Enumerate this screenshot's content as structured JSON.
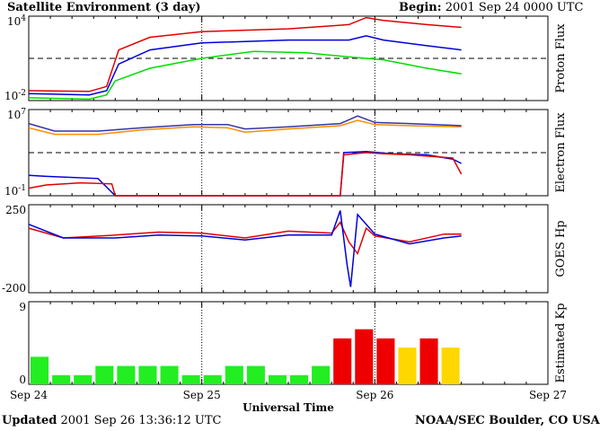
{
  "header": {
    "title": "Satellite Environment (3 day)",
    "begin_label": "Begin:",
    "begin_value": "2001 Sep 24 0000 UTC"
  },
  "footer": {
    "updated_label": "Updated",
    "updated_value": "2001 Sep 26 13:36:12 UTC",
    "credit": "NOAA/SEC Boulder, CO USA"
  },
  "chart_data": [
    {
      "type": "line",
      "ylabel": "Proton Flux",
      "ylim_log10": [
        -2,
        4
      ],
      "yticks": [
        {
          "exp": 4,
          "label": "10^4"
        },
        {
          "exp": -2,
          "label": "10^-2"
        }
      ],
      "threshold_log10": 1,
      "colors": [
        "#e00000",
        "#0000dd",
        "#00dd00"
      ],
      "series": [
        {
          "key": "p1",
          "color": "#e00000",
          "points": [
            [
              0,
              -1.3
            ],
            [
              0.35,
              -1.35
            ],
            [
              0.45,
              -1.0
            ],
            [
              0.52,
              1.6
            ],
            [
              0.7,
              2.5
            ],
            [
              1.0,
              2.9
            ],
            [
              1.5,
              3.1
            ],
            [
              1.85,
              3.4
            ],
            [
              1.95,
              3.9
            ],
            [
              2.05,
              3.7
            ],
            [
              2.3,
              3.4
            ],
            [
              2.5,
              3.2
            ]
          ]
        },
        {
          "key": "p2",
          "color": "#0000dd",
          "points": [
            [
              0,
              -1.5
            ],
            [
              0.35,
              -1.6
            ],
            [
              0.45,
              -1.3
            ],
            [
              0.52,
              0.6
            ],
            [
              0.7,
              1.6
            ],
            [
              1.0,
              2.1
            ],
            [
              1.5,
              2.3
            ],
            [
              1.85,
              2.3
            ],
            [
              1.95,
              2.6
            ],
            [
              2.05,
              2.3
            ],
            [
              2.3,
              1.9
            ],
            [
              2.5,
              1.6
            ]
          ]
        },
        {
          "key": "p3",
          "color": "#00dd00",
          "points": [
            [
              0,
              -1.8
            ],
            [
              0.35,
              -1.9
            ],
            [
              0.45,
              -1.6
            ],
            [
              0.5,
              -0.6
            ],
            [
              0.7,
              0.3
            ],
            [
              1.0,
              1.0
            ],
            [
              1.3,
              1.5
            ],
            [
              1.6,
              1.4
            ],
            [
              1.85,
              1.1
            ],
            [
              2.05,
              0.9
            ],
            [
              2.3,
              0.3
            ],
            [
              2.5,
              -0.1
            ]
          ]
        }
      ]
    },
    {
      "type": "line",
      "ylabel": "Electron Flux",
      "ylim_log10": [
        -1,
        7
      ],
      "yticks": [
        {
          "exp": 7,
          "label": "10^7"
        },
        {
          "exp": -1,
          "label": "10^-1"
        }
      ],
      "threshold_log10": 3,
      "series": [
        {
          "key": "e1",
          "color": "#ff8c00",
          "points": [
            [
              0,
              5.3
            ],
            [
              0.15,
              4.7
            ],
            [
              0.4,
              4.7
            ],
            [
              0.65,
              5.1
            ],
            [
              0.95,
              5.4
            ],
            [
              1.15,
              5.3
            ],
            [
              1.25,
              4.9
            ],
            [
              1.5,
              5.2
            ],
            [
              1.8,
              5.5
            ],
            [
              1.9,
              6.0
            ],
            [
              2.0,
              5.6
            ],
            [
              2.2,
              5.5
            ],
            [
              2.5,
              5.4
            ]
          ]
        },
        {
          "key": "e2",
          "color": "#3333aa",
          "points": [
            [
              0,
              5.7
            ],
            [
              0.15,
              5.0
            ],
            [
              0.4,
              5.0
            ],
            [
              0.65,
              5.3
            ],
            [
              0.95,
              5.6
            ],
            [
              1.15,
              5.6
            ],
            [
              1.25,
              5.2
            ],
            [
              1.5,
              5.4
            ],
            [
              1.8,
              5.7
            ],
            [
              1.9,
              6.4
            ],
            [
              2.0,
              5.8
            ],
            [
              2.2,
              5.7
            ],
            [
              2.5,
              5.5
            ]
          ]
        },
        {
          "key": "e3",
          "color": "#0000dd",
          "points": [
            [
              0,
              0.9
            ],
            [
              0.1,
              0.8
            ],
            [
              0.4,
              0.6
            ],
            [
              0.5,
              -1.0
            ],
            [
              1.8,
              -1.0
            ],
            [
              1.82,
              3.0
            ],
            [
              1.95,
              3.1
            ],
            [
              2.1,
              2.9
            ],
            [
              2.3,
              2.8
            ],
            [
              2.45,
              2.4
            ],
            [
              2.5,
              2.0
            ]
          ]
        },
        {
          "key": "e4",
          "color": "#e00000",
          "points": [
            [
              0,
              -0.3
            ],
            [
              0.1,
              0.0
            ],
            [
              0.3,
              0.2
            ],
            [
              0.48,
              0.1
            ],
            [
              0.5,
              -1.0
            ],
            [
              1.8,
              -1.0
            ],
            [
              1.82,
              2.8
            ],
            [
              1.95,
              3.0
            ],
            [
              2.05,
              2.9
            ],
            [
              2.2,
              2.8
            ],
            [
              2.45,
              2.5
            ],
            [
              2.5,
              1.0
            ]
          ]
        }
      ]
    },
    {
      "type": "line",
      "ylabel": "GOES Hp",
      "ylim": [
        -200,
        250
      ],
      "yticks": [
        {
          "v": 250,
          "label": "250"
        },
        {
          "v": -200,
          "label": "-200"
        }
      ],
      "series": [
        {
          "key": "h1",
          "color": "#e00000",
          "points": [
            [
              0,
              130
            ],
            [
              0.2,
              80
            ],
            [
              0.5,
              95
            ],
            [
              0.75,
              110
            ],
            [
              1.0,
              105
            ],
            [
              1.25,
              80
            ],
            [
              1.5,
              115
            ],
            [
              1.75,
              105
            ],
            [
              1.8,
              160
            ],
            [
              1.85,
              60
            ],
            [
              1.9,
              0
            ],
            [
              1.95,
              130
            ],
            [
              2.0,
              90
            ],
            [
              2.2,
              60
            ],
            [
              2.4,
              100
            ],
            [
              2.5,
              100
            ]
          ]
        },
        {
          "key": "h2",
          "color": "#0000dd",
          "points": [
            [
              0,
              150
            ],
            [
              0.2,
              80
            ],
            [
              0.5,
              80
            ],
            [
              0.75,
              95
            ],
            [
              1.0,
              90
            ],
            [
              1.25,
              70
            ],
            [
              1.5,
              95
            ],
            [
              1.75,
              95
            ],
            [
              1.8,
              220
            ],
            [
              1.84,
              -60
            ],
            [
              1.86,
              -170
            ],
            [
              1.9,
              200
            ],
            [
              2.0,
              100
            ],
            [
              2.2,
              50
            ],
            [
              2.4,
              80
            ],
            [
              2.5,
              90
            ]
          ]
        }
      ]
    },
    {
      "type": "bar",
      "ylabel": "Estimated Kp",
      "ylim": [
        0,
        9
      ],
      "yticks": [
        {
          "v": 9,
          "label": "9"
        },
        {
          "v": 0,
          "label": "0"
        }
      ],
      "bar_hours": 3,
      "values": [
        3,
        1,
        1,
        2,
        2,
        2,
        2,
        1,
        1,
        2,
        2,
        1,
        1,
        2,
        5,
        6,
        5,
        4,
        5,
        4
      ],
      "colors": {
        "quiet": "#22ee22",
        "active": "#ffd700",
        "storm": "#ee0000"
      },
      "color_rule": "quiet if Kp<4, active if Kp=4, storm if Kp>=5"
    }
  ],
  "x_axis": {
    "xlabel": "Universal Time",
    "days": 3,
    "tick_labels": [
      "Sep 24",
      "Sep 25",
      "Sep 26",
      "Sep 27"
    ]
  }
}
